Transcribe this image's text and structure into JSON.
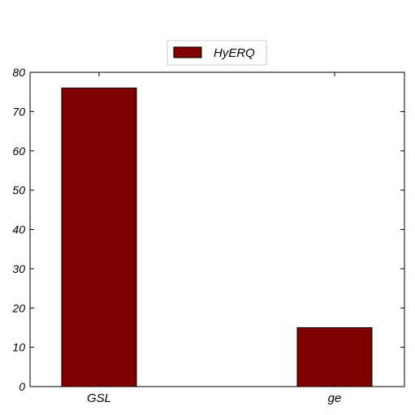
{
  "chart_data": {
    "type": "bar",
    "title": "",
    "xlabel": "",
    "ylabel": "",
    "categories": [
      "GSL",
      "ge"
    ],
    "series": [
      {
        "name": "HyERQ",
        "values": [
          76,
          15
        ],
        "color": "#800000"
      }
    ],
    "ylim": [
      0,
      80
    ],
    "yticks": [
      0,
      10,
      20,
      30,
      40,
      50,
      60,
      70,
      80
    ],
    "ytick_labels": [
      "0",
      "10",
      "20",
      "30",
      "40",
      "50",
      "60",
      "70",
      "80"
    ],
    "grid": false,
    "legend_position": "top-center"
  }
}
